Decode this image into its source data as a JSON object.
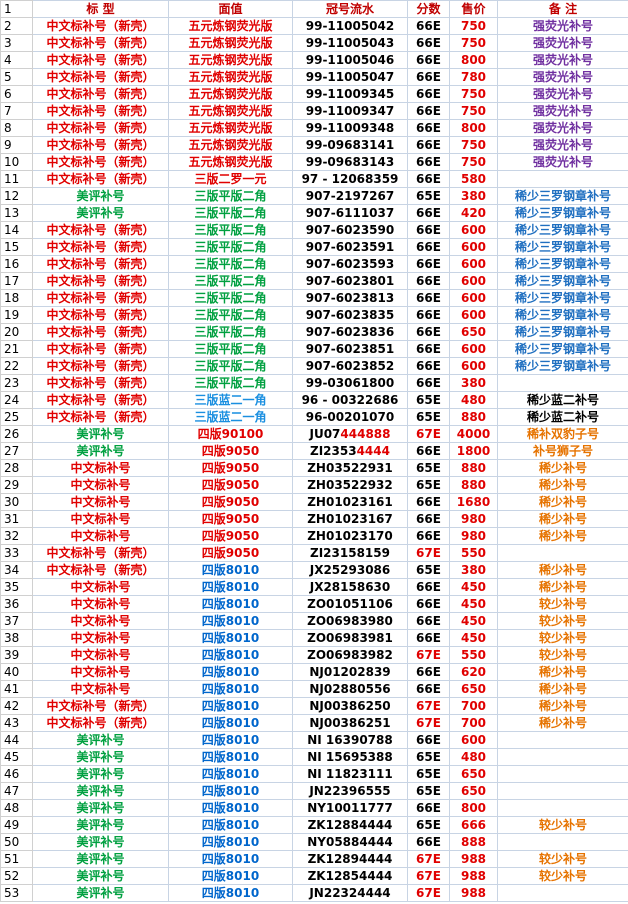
{
  "palette": {
    "R": "#e00000",
    "G": "#00a040",
    "B": "#0066cc",
    "L": "#1a8fe0",
    "K": "#000000",
    "P": "#7030a0",
    "O": "#e67300",
    "D": "#c00000",
    "S": "#1f6fc0"
  },
  "highlight": "R",
  "header": {
    "num": 1,
    "cells": [
      "标 型",
      "面值",
      "冠号流水",
      "分数",
      "售价",
      "备 注"
    ],
    "colors": "DDDDDD"
  },
  "rows": [
    {
      "num": 2,
      "cells": [
        "中文标补号（新壳）",
        "五元炼钢荧光版",
        "99-11005042",
        "66E",
        "750",
        "强荧光补号"
      ],
      "colors": "RRKKRP"
    },
    {
      "num": 3,
      "cells": [
        "中文标补号（新壳）",
        "五元炼钢荧光版",
        "99-11005043",
        "66E",
        "750",
        "强荧光补号"
      ],
      "colors": "RRKKRP"
    },
    {
      "num": 4,
      "cells": [
        "中文标补号（新壳）",
        "五元炼钢荧光版",
        "99-11005046",
        "66E",
        "800",
        "强荧光补号"
      ],
      "colors": "RRKKRP"
    },
    {
      "num": 5,
      "cells": [
        "中文标补号（新壳）",
        "五元炼钢荧光版",
        "99-11005047",
        "66E",
        "780",
        "强荧光补号"
      ],
      "colors": "RRKKRP"
    },
    {
      "num": 6,
      "cells": [
        "中文标补号（新壳）",
        "五元炼钢荧光版",
        "99-11009345",
        "66E",
        "750",
        "强荧光补号"
      ],
      "colors": "RRKKRP"
    },
    {
      "num": 7,
      "cells": [
        "中文标补号（新壳）",
        "五元炼钢荧光版",
        "99-11009347",
        "66E",
        "750",
        "强荧光补号"
      ],
      "colors": "RRKKRP"
    },
    {
      "num": 8,
      "cells": [
        "中文标补号（新壳）",
        "五元炼钢荧光版",
        "99-11009348",
        "66E",
        "800",
        "强荧光补号"
      ],
      "colors": "RRKKRP"
    },
    {
      "num": 9,
      "cells": [
        "中文标补号（新壳）",
        "五元炼钢荧光版",
        "99-09683141",
        "66E",
        "750",
        "强荧光补号"
      ],
      "colors": "RRKKRP"
    },
    {
      "num": 10,
      "cells": [
        "中文标补号（新壳）",
        "五元炼钢荧光版",
        "99-09683143",
        "66E",
        "750",
        "强荧光补号"
      ],
      "colors": "RRKKRP"
    },
    {
      "num": 11,
      "cells": [
        "中文标补号（新壳）",
        "三版二罗一元",
        "97 - 12068359",
        "66E",
        "580",
        ""
      ],
      "colors": "RRKKRK"
    },
    {
      "num": 12,
      "cells": [
        "美评补号",
        "三版平版二角",
        "907-2197267",
        "65E",
        "380",
        "稀少三罗钢章补号"
      ],
      "colors": "GGKKRS"
    },
    {
      "num": 13,
      "cells": [
        "美评补号",
        "三版平版二角",
        "907-6111037",
        "66E",
        "420",
        "稀少三罗钢章补号"
      ],
      "colors": "GGKKRS"
    },
    {
      "num": 14,
      "cells": [
        "中文标补号（新壳）",
        "三版平版二角",
        "907-6023590",
        "66E",
        "600",
        "稀少三罗钢章补号"
      ],
      "colors": "RGKKRS"
    },
    {
      "num": 15,
      "cells": [
        "中文标补号（新壳）",
        "三版平版二角",
        "907-6023591",
        "66E",
        "600",
        "稀少三罗钢章补号"
      ],
      "colors": "RGKKRS"
    },
    {
      "num": 16,
      "cells": [
        "中文标补号（新壳）",
        "三版平版二角",
        "907-6023593",
        "66E",
        "600",
        "稀少三罗钢章补号"
      ],
      "colors": "RGKKRS"
    },
    {
      "num": 17,
      "cells": [
        "中文标补号（新壳）",
        "三版平版二角",
        "907-6023801",
        "66E",
        "600",
        "稀少三罗钢章补号"
      ],
      "colors": "RGKKRS"
    },
    {
      "num": 18,
      "cells": [
        "中文标补号（新壳）",
        "三版平版二角",
        "907-6023813",
        "66E",
        "600",
        "稀少三罗钢章补号"
      ],
      "colors": "RGKKRS"
    },
    {
      "num": 19,
      "cells": [
        "中文标补号（新壳）",
        "三版平版二角",
        "907-6023835",
        "66E",
        "600",
        "稀少三罗钢章补号"
      ],
      "colors": "RGKKRS"
    },
    {
      "num": 20,
      "cells": [
        "中文标补号（新壳）",
        "三版平版二角",
        "907-6023836",
        "66E",
        "650",
        "稀少三罗钢章补号"
      ],
      "colors": "RGKKRS"
    },
    {
      "num": 21,
      "cells": [
        "中文标补号（新壳）",
        "三版平版二角",
        "907-6023851",
        "66E",
        "600",
        "稀少三罗钢章补号"
      ],
      "colors": "RGKKRS"
    },
    {
      "num": 22,
      "cells": [
        "中文标补号（新壳）",
        "三版平版二角",
        "907-6023852",
        "66E",
        "600",
        "稀少三罗钢章补号"
      ],
      "colors": "RGKKRS"
    },
    {
      "num": 23,
      "cells": [
        "中文标补号（新壳）",
        "三版平版二角",
        "99-03061800",
        "66E",
        "380",
        ""
      ],
      "colors": "RGKKRK"
    },
    {
      "num": 24,
      "cells": [
        "中文标补号（新壳）",
        "三版蓝二一角",
        "96 - 00322686",
        "65E",
        "480",
        "稀少蓝二补号"
      ],
      "colors": "RLKKRK"
    },
    {
      "num": 25,
      "cells": [
        "中文标补号（新壳）",
        "三版蓝二一角",
        "96-00201070",
        "65E",
        "880",
        "稀少蓝二补号"
      ],
      "colors": "RLKKRK"
    },
    {
      "num": 26,
      "cells": [
        "美评补号",
        "四版90100",
        [
          "JU07",
          "444888"
        ],
        "67E",
        "4000",
        "稀补双豹子号"
      ],
      "colors": "GRKRRO"
    },
    {
      "num": 27,
      "cells": [
        "美评补号",
        "四版9050",
        [
          "ZI2353",
          "4444"
        ],
        "66E",
        "1800",
        "补号狮子号"
      ],
      "colors": "GRKKRO"
    },
    {
      "num": 28,
      "cells": [
        "中文标补号",
        "四版9050",
        "ZH03522931",
        "65E",
        "880",
        "稀少补号"
      ],
      "colors": "RRKKRO"
    },
    {
      "num": 29,
      "cells": [
        "中文标补号",
        "四版9050",
        "ZH03522932",
        "65E",
        "880",
        "稀少补号"
      ],
      "colors": "RRKKRO"
    },
    {
      "num": 30,
      "cells": [
        "中文标补号",
        "四版9050",
        "ZH01023161",
        "66E",
        "1680",
        "稀少补号"
      ],
      "colors": "RRKKRO"
    },
    {
      "num": 31,
      "cells": [
        "中文标补号",
        "四版9050",
        "ZH01023167",
        "66E",
        "980",
        "稀少补号"
      ],
      "colors": "RRKKRO"
    },
    {
      "num": 32,
      "cells": [
        "中文标补号",
        "四版9050",
        "ZH01023170",
        "66E",
        "980",
        "稀少补号"
      ],
      "colors": "RRKKRO"
    },
    {
      "num": 33,
      "cells": [
        "中文标补号（新壳）",
        "四版9050",
        "ZI23158159",
        "67E",
        "550",
        ""
      ],
      "colors": "RRKRRK"
    },
    {
      "num": 34,
      "cells": [
        "中文标补号（新壳）",
        "四版8010",
        "JX25293086",
        "65E",
        "380",
        "稀少补号"
      ],
      "colors": "RBKKRO"
    },
    {
      "num": 35,
      "cells": [
        "中文标补号",
        "四版8010",
        "JX28158630",
        "66E",
        "450",
        "稀少补号"
      ],
      "colors": "RBKKRO"
    },
    {
      "num": 36,
      "cells": [
        "中文标补号",
        "四版8010",
        "ZO01051106",
        "66E",
        "450",
        "较少补号"
      ],
      "colors": "RBKKRO"
    },
    {
      "num": 37,
      "cells": [
        "中文标补号",
        "四版8010",
        "ZO06983980",
        "66E",
        "450",
        "较少补号"
      ],
      "colors": "RBKKRO"
    },
    {
      "num": 38,
      "cells": [
        "中文标补号",
        "四版8010",
        "ZO06983981",
        "66E",
        "450",
        "较少补号"
      ],
      "colors": "RBKKRO"
    },
    {
      "num": 39,
      "cells": [
        "中文标补号",
        "四版8010",
        "ZO06983982",
        "67E",
        "550",
        "较少补号"
      ],
      "colors": "RBKRRO"
    },
    {
      "num": 40,
      "cells": [
        "中文标补号",
        "四版8010",
        "NJ01202839",
        "66E",
        "620",
        "稀少补号"
      ],
      "colors": "RBKKRO"
    },
    {
      "num": 41,
      "cells": [
        "中文标补号",
        "四版8010",
        "NJ02880556",
        "66E",
        "650",
        "稀少补号"
      ],
      "colors": "RBKKRO"
    },
    {
      "num": 42,
      "cells": [
        "中文标补号（新壳）",
        "四版8010",
        "NJ00386250",
        "67E",
        "700",
        "稀少补号"
      ],
      "colors": "RBKRRO"
    },
    {
      "num": 43,
      "cells": [
        "中文标补号（新壳）",
        "四版8010",
        "NJ00386251",
        "67E",
        "700",
        "稀少补号"
      ],
      "colors": "RBKRRO"
    },
    {
      "num": 44,
      "cells": [
        "美评补号",
        "四版8010",
        "NI 16390788",
        "66E",
        "600",
        ""
      ],
      "colors": "GBKKRO"
    },
    {
      "num": 45,
      "cells": [
        "美评补号",
        "四版8010",
        "NI 15695388",
        "65E",
        "480",
        ""
      ],
      "colors": "GBKKRO"
    },
    {
      "num": 46,
      "cells": [
        "美评补号",
        "四版8010",
        "NI 11823111",
        "65E",
        "650",
        ""
      ],
      "colors": "GBKKRO"
    },
    {
      "num": 47,
      "cells": [
        "美评补号",
        "四版8010",
        "JN22396555",
        "65E",
        "650",
        ""
      ],
      "colors": "GBKKRO"
    },
    {
      "num": 48,
      "cells": [
        "美评补号",
        "四版8010",
        "NY10011777",
        "66E",
        "800",
        ""
      ],
      "colors": "GBKKRO"
    },
    {
      "num": 49,
      "cells": [
        "美评补号",
        "四版8010",
        "ZK12884444",
        "65E",
        "666",
        "较少补号"
      ],
      "colors": "GBKKRO"
    },
    {
      "num": 50,
      "cells": [
        "美评补号",
        "四版8010",
        "NY05884444",
        "66E",
        "888",
        ""
      ],
      "colors": "GBKKRO"
    },
    {
      "num": 51,
      "cells": [
        "美评补号",
        "四版8010",
        "ZK12894444",
        "67E",
        "988",
        "较少补号"
      ],
      "colors": "GBKRRO"
    },
    {
      "num": 52,
      "cells": [
        "美评补号",
        "四版8010",
        "ZK12854444",
        "67E",
        "988",
        "较少补号"
      ],
      "colors": "GBKRRO"
    },
    {
      "num": 53,
      "cells": [
        "美评补号",
        "四版8010",
        "JN22324444",
        "67E",
        "988",
        ""
      ],
      "colors": "GBKRRO"
    }
  ]
}
